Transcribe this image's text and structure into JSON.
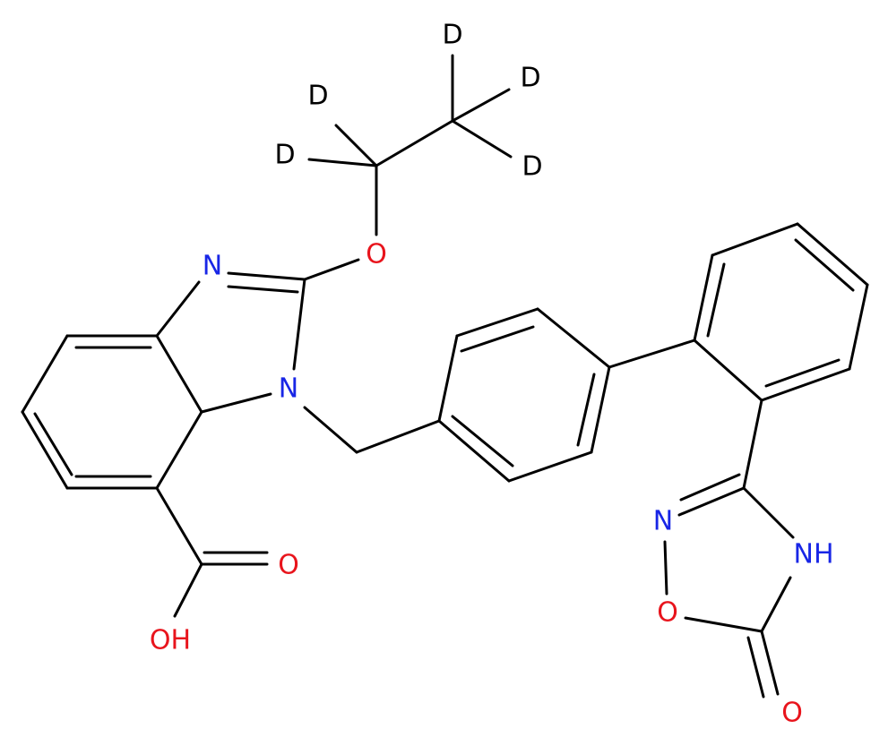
{
  "atoms": {
    "d1": "D",
    "d2": "D",
    "d3": "D",
    "d4": "D",
    "d5": "D",
    "o_ether": "O",
    "n3": "N",
    "n1": "N",
    "o_acid": "O",
    "oh_acid": "OH",
    "n_ox": "N",
    "nh_ox": "NH",
    "o_ring": "O",
    "o_keto": "O"
  }
}
